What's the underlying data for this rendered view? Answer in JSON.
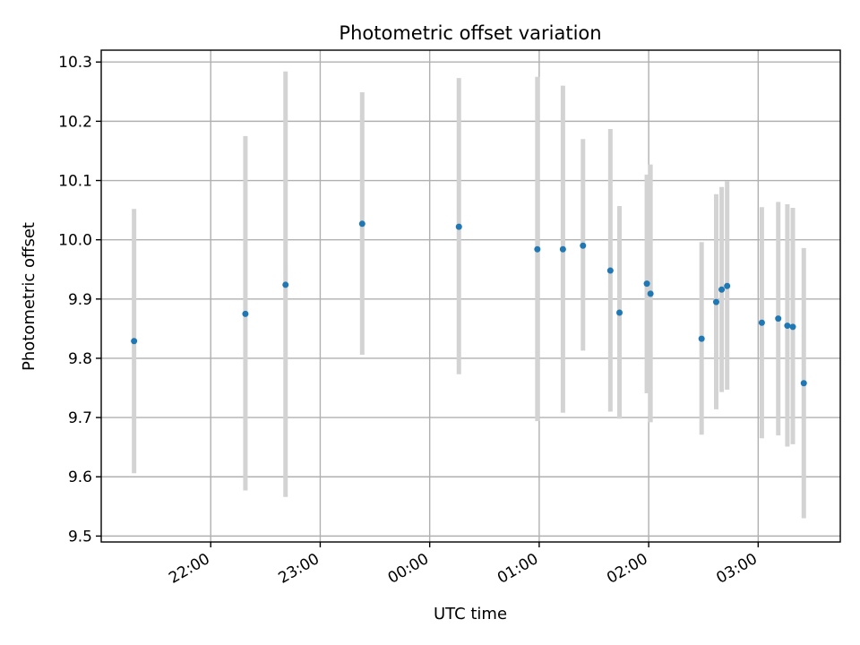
{
  "chart_data": {
    "type": "scatter",
    "title": "Photometric offset variation",
    "xlabel": "UTC time",
    "ylabel": "Photometric offset",
    "xlim": [
      "21:00",
      "03:45"
    ],
    "ylim": [
      9.49,
      10.32
    ],
    "grid": true,
    "x_ticks": [
      "22:00",
      "23:00",
      "00:00",
      "01:00",
      "02:00",
      "03:00"
    ],
    "y_ticks": [
      "9.5",
      "9.6",
      "9.7",
      "9.8",
      "9.9",
      "10.0",
      "10.1",
      "10.2",
      "10.3"
    ],
    "colors": {
      "points": "#1f77b4",
      "errorbars": "#d3d3d3",
      "grid": "#b0b0b0"
    },
    "points": [
      {
        "x": "21:18",
        "y": 9.829,
        "ylow": 9.606,
        "yhigh": 10.052
      },
      {
        "x": "22:19",
        "y": 9.875,
        "ylow": 9.577,
        "yhigh": 10.175
      },
      {
        "x": "22:41",
        "y": 9.924,
        "ylow": 9.566,
        "yhigh": 10.284
      },
      {
        "x": "23:23",
        "y": 10.027,
        "ylow": 9.806,
        "yhigh": 10.249
      },
      {
        "x": "00:16",
        "y": 10.022,
        "ylow": 9.773,
        "yhigh": 10.273
      },
      {
        "x": "00:59",
        "y": 9.984,
        "ylow": 9.694,
        "yhigh": 10.275
      },
      {
        "x": "01:13",
        "y": 9.984,
        "ylow": 9.708,
        "yhigh": 10.26
      },
      {
        "x": "01:24",
        "y": 9.99,
        "ylow": 9.813,
        "yhigh": 10.17
      },
      {
        "x": "01:39",
        "y": 9.948,
        "ylow": 9.71,
        "yhigh": 10.187
      },
      {
        "x": "01:44",
        "y": 9.877,
        "ylow": 9.698,
        "yhigh": 10.057
      },
      {
        "x": "01:59",
        "y": 9.926,
        "ylow": 9.741,
        "yhigh": 10.11
      },
      {
        "x": "02:01",
        "y": 9.909,
        "ylow": 9.692,
        "yhigh": 10.127
      },
      {
        "x": "02:29",
        "y": 9.833,
        "ylow": 9.671,
        "yhigh": 9.996
      },
      {
        "x": "02:37",
        "y": 9.895,
        "ylow": 9.714,
        "yhigh": 10.077
      },
      {
        "x": "02:40",
        "y": 9.916,
        "ylow": 9.743,
        "yhigh": 10.089
      },
      {
        "x": "02:43",
        "y": 9.922,
        "ylow": 9.747,
        "yhigh": 10.099
      },
      {
        "x": "03:02",
        "y": 9.86,
        "ylow": 9.665,
        "yhigh": 10.055
      },
      {
        "x": "03:11",
        "y": 9.867,
        "ylow": 9.67,
        "yhigh": 10.064
      },
      {
        "x": "03:16",
        "y": 9.855,
        "ylow": 9.651,
        "yhigh": 10.06
      },
      {
        "x": "03:19",
        "y": 9.853,
        "ylow": 9.655,
        "yhigh": 10.054
      },
      {
        "x": "03:25",
        "y": 9.758,
        "ylow": 9.53,
        "yhigh": 9.986
      }
    ]
  }
}
